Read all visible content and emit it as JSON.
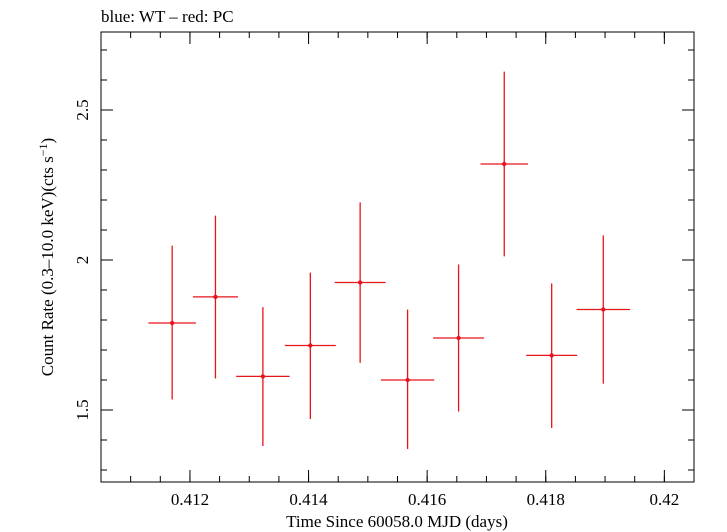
{
  "chart_data": {
    "type": "scatter",
    "title": "blue: WT – red: PC",
    "xlabel": "Time Since 60058.0 MJD (days)",
    "ylabel_main": "Count Rate (0.3–10.0 keV)(cts s",
    "ylabel_sup": "−1",
    "ylabel_close": ")",
    "xlim": [
      0.4105,
      0.4205
    ],
    "ylim": [
      1.26,
      2.76
    ],
    "xticks": [
      {
        "value": 0.412,
        "label": "0.412"
      },
      {
        "value": 0.414,
        "label": "0.414"
      },
      {
        "value": 0.416,
        "label": "0.416"
      },
      {
        "value": 0.418,
        "label": "0.418"
      },
      {
        "value": 0.42,
        "label": "0.42"
      }
    ],
    "yticks": [
      {
        "value": 1.5,
        "label": "1.5"
      },
      {
        "value": 2.0,
        "label": "2"
      },
      {
        "value": 2.5,
        "label": "2.5"
      }
    ],
    "x_minor_step": 0.0005,
    "y_minor_step": 0.1,
    "grid": false,
    "series": [
      {
        "color": "#e8141c",
        "points": [
          {
            "x": 0.4117,
            "xerr": 0.0004,
            "y": 1.79,
            "ylo": 1.535,
            "yhi": 2.048
          },
          {
            "x": 0.41243,
            "xerr": 0.00038,
            "y": 1.877,
            "ylo": 1.605,
            "yhi": 2.148
          },
          {
            "x": 0.41323,
            "xerr": 0.00045,
            "y": 1.612,
            "ylo": 1.38,
            "yhi": 1.843
          },
          {
            "x": 0.41403,
            "xerr": 0.00043,
            "y": 1.715,
            "ylo": 1.47,
            "yhi": 1.958
          },
          {
            "x": 0.41487,
            "xerr": 0.00043,
            "y": 1.925,
            "ylo": 1.657,
            "yhi": 2.192
          },
          {
            "x": 0.41567,
            "xerr": 0.00045,
            "y": 1.6,
            "ylo": 1.37,
            "yhi": 1.835
          },
          {
            "x": 0.41653,
            "xerr": 0.00043,
            "y": 1.74,
            "ylo": 1.495,
            "yhi": 1.985
          },
          {
            "x": 0.4173,
            "xerr": 0.0004,
            "y": 2.32,
            "ylo": 2.012,
            "yhi": 2.628
          },
          {
            "x": 0.4181,
            "xerr": 0.00043,
            "y": 1.682,
            "ylo": 1.44,
            "yhi": 1.922
          },
          {
            "x": 0.41897,
            "xerr": 0.00045,
            "y": 1.835,
            "ylo": 1.588,
            "yhi": 2.082
          }
        ]
      }
    ]
  }
}
